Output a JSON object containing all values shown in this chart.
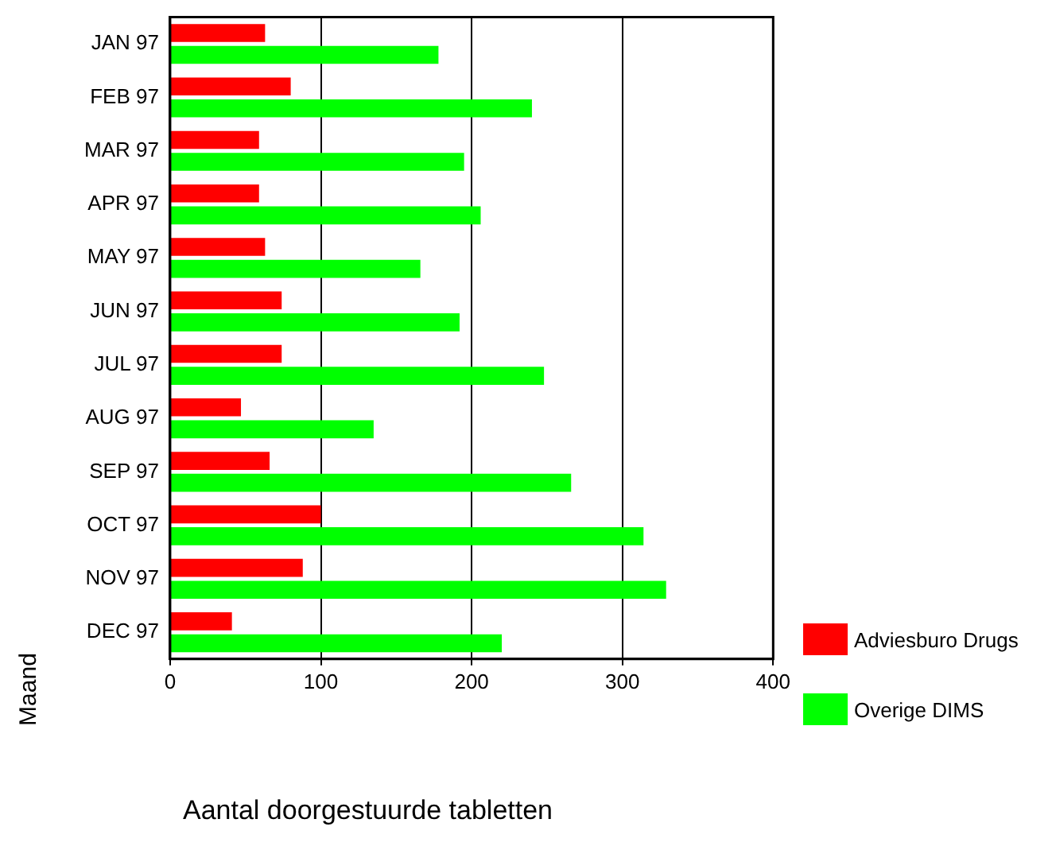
{
  "chart_data": {
    "type": "bar",
    "orientation": "horizontal",
    "xlabel": "Aantal doorgestuurde tabletten",
    "ylabel": "Maand",
    "categories": [
      "JAN 97",
      "FEB 97",
      "MAR 97",
      "APR 97",
      "MAY 97",
      "JUN 97",
      "JUL 97",
      "AUG 97",
      "SEP 97",
      "OCT 97",
      "NOV 97",
      "DEC 97"
    ],
    "series": [
      {
        "name": "Adviesburo Drugs",
        "color": "#ff0000",
        "values": [
          63,
          80,
          59,
          59,
          63,
          74,
          74,
          47,
          66,
          100,
          88,
          41
        ]
      },
      {
        "name": "Overige DIMS",
        "color": "#00ff00",
        "values": [
          178,
          240,
          195,
          206,
          166,
          192,
          248,
          135,
          266,
          314,
          329,
          220
        ]
      }
    ],
    "xlim": [
      0,
      400
    ],
    "xticks": [
      0,
      100,
      200,
      300,
      400
    ],
    "grid": "x",
    "legend": "right"
  }
}
